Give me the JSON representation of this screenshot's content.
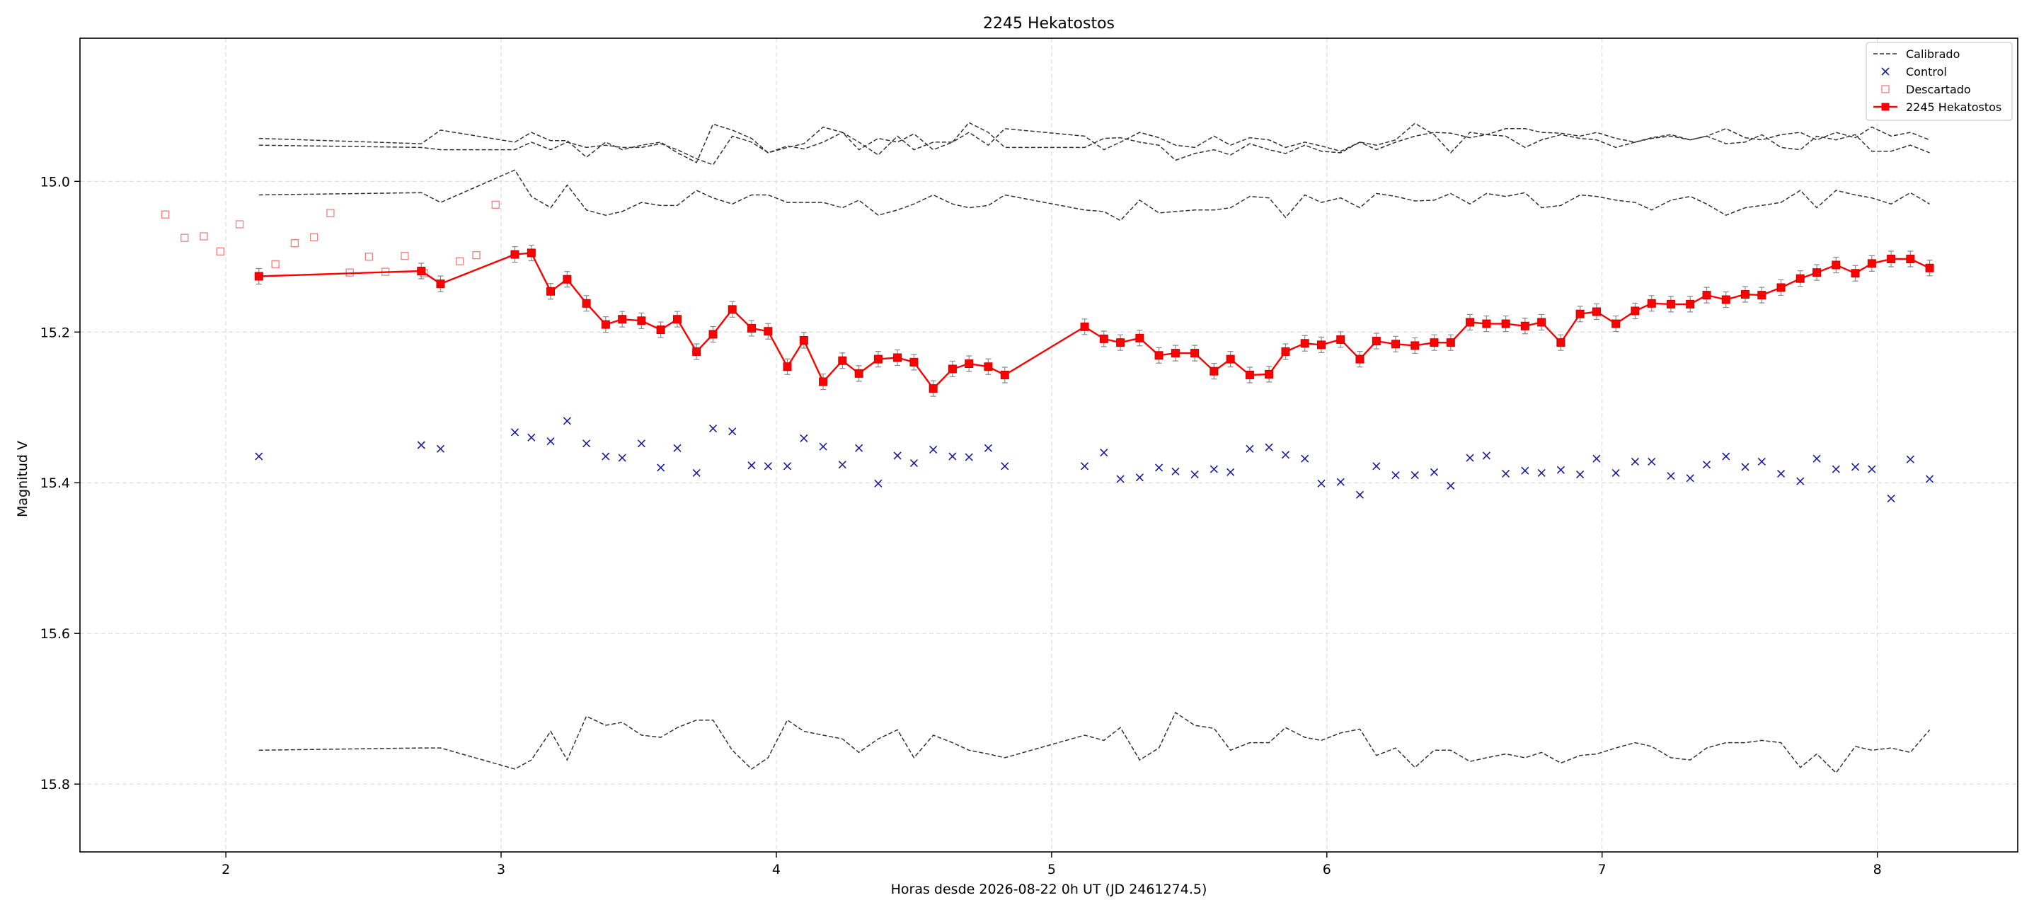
{
  "chart_data": {
    "type": "line",
    "title": "2245 Hekatostos",
    "xlabel": "Horas desde 2026-08-22 0h UT (JD 2461274.5)",
    "ylabel": "Magnitud V",
    "xlim": [
      1.47,
      8.51
    ],
    "ylim": [
      15.89,
      14.81
    ],
    "y_inverted": true,
    "grid": true,
    "legend_position": "top-right",
    "x_ticks": [
      "2",
      "3",
      "4",
      "5",
      "6",
      "7",
      "8"
    ],
    "x_tick_values": [
      2,
      3,
      4,
      5,
      6,
      7,
      8
    ],
    "y_ticks": [
      "15.0",
      "15.2",
      "15.4",
      "15.6",
      "15.8"
    ],
    "y_tick_values": [
      15.0,
      15.2,
      15.4,
      15.6,
      15.8
    ],
    "legend": [
      "Calibrado",
      "Control",
      "Descartado",
      "2245 Hekatostos"
    ],
    "colors": {
      "calibrated": "#333333",
      "control": "#1a1aa0",
      "discarded": "#f08080",
      "target": "#ff0000",
      "grid": "#dddddd"
    },
    "target": {
      "name": "2245 Hekatostos",
      "x": [
        2.12,
        2.71,
        2.78,
        3.05,
        3.11,
        3.18,
        3.24,
        3.31,
        3.38,
        3.44,
        3.51,
        3.58,
        3.64,
        3.71,
        3.77,
        3.84,
        3.91,
        3.97,
        4.04,
        4.1,
        4.17,
        4.24,
        4.3,
        4.37,
        4.44,
        4.5,
        4.57,
        4.64,
        4.7,
        4.77,
        4.83,
        5.12,
        5.19,
        5.25,
        5.32,
        5.39,
        5.45,
        5.52,
        5.59,
        5.65,
        5.72,
        5.79,
        5.85,
        5.92,
        5.98,
        6.05,
        6.12,
        6.18,
        6.25,
        6.32,
        6.39,
        6.45,
        6.52,
        6.58,
        6.65,
        6.72,
        6.78,
        6.85,
        6.92,
        6.98,
        7.05,
        7.12,
        7.18,
        7.25,
        7.32,
        7.38,
        7.45,
        7.52,
        7.58,
        7.65,
        7.72,
        7.78,
        7.85,
        7.92,
        7.98,
        8.05,
        8.12,
        8.19
      ],
      "y": [
        15.126,
        15.119,
        15.136,
        15.097,
        15.095,
        15.146,
        15.13,
        15.162,
        15.19,
        15.183,
        15.185,
        15.197,
        15.183,
        15.226,
        15.203,
        15.17,
        15.195,
        15.199,
        15.246,
        15.211,
        15.266,
        15.238,
        15.255,
        15.236,
        15.234,
        15.24,
        15.275,
        15.249,
        15.242,
        15.246,
        15.257,
        15.193,
        15.209,
        15.214,
        15.208,
        15.231,
        15.228,
        15.228,
        15.252,
        15.236,
        15.257,
        15.256,
        15.226,
        15.215,
        15.217,
        15.21,
        15.236,
        15.212,
        15.216,
        15.218,
        15.214,
        15.214,
        15.187,
        15.189,
        15.189,
        15.192,
        15.187,
        15.214,
        15.176,
        15.173,
        15.189,
        15.172,
        15.162,
        15.163,
        15.163,
        15.151,
        15.157,
        15.15,
        15.151,
        15.141,
        15.129,
        15.121,
        15.111,
        15.122,
        15.109,
        15.103,
        15.103,
        15.115
      ]
    },
    "control": {
      "name": "Control",
      "x": [
        2.12,
        2.71,
        2.78,
        3.05,
        3.11,
        3.18,
        3.24,
        3.31,
        3.38,
        3.44,
        3.51,
        3.58,
        3.64,
        3.71,
        3.77,
        3.84,
        3.91,
        3.97,
        4.04,
        4.1,
        4.17,
        4.24,
        4.3,
        4.37,
        4.44,
        4.5,
        4.57,
        4.64,
        4.7,
        4.77,
        4.83,
        5.12,
        5.19,
        5.25,
        5.32,
        5.39,
        5.45,
        5.52,
        5.59,
        5.65,
        5.72,
        5.79,
        5.85,
        5.92,
        5.98,
        6.05,
        6.12,
        6.18,
        6.25,
        6.32,
        6.39,
        6.45,
        6.52,
        6.58,
        6.65,
        6.72,
        6.78,
        6.85,
        6.92,
        6.98,
        7.05,
        7.12,
        7.18,
        7.25,
        7.32,
        7.38,
        7.45,
        7.52,
        7.58,
        7.65,
        7.72,
        7.78,
        7.85,
        7.92,
        7.98,
        8.05,
        8.12,
        8.19
      ],
      "y": [
        15.365,
        15.35,
        15.355,
        15.333,
        15.34,
        15.345,
        15.318,
        15.348,
        15.365,
        15.367,
        15.348,
        15.38,
        15.354,
        15.387,
        15.328,
        15.332,
        15.377,
        15.378,
        15.378,
        15.341,
        15.352,
        15.376,
        15.354,
        15.401,
        15.364,
        15.374,
        15.356,
        15.365,
        15.366,
        15.354,
        15.378,
        15.378,
        15.36,
        15.395,
        15.393,
        15.38,
        15.385,
        15.389,
        15.382,
        15.386,
        15.355,
        15.353,
        15.363,
        15.368,
        15.401,
        15.399,
        15.416,
        15.378,
        15.39,
        15.39,
        15.386,
        15.404,
        15.367,
        15.364,
        15.388,
        15.384,
        15.387,
        15.383,
        15.389,
        15.368,
        15.387,
        15.372,
        15.372,
        15.391,
        15.394,
        15.376,
        15.365,
        15.379,
        15.372,
        15.388,
        15.398,
        15.368,
        15.382,
        15.379,
        15.382,
        15.421,
        15.369,
        15.395
      ]
    },
    "discarded": {
      "name": "Descartado",
      "x": [
        1.78,
        1.85,
        1.92,
        1.98,
        2.05,
        2.18,
        2.25,
        2.32,
        2.38,
        2.45,
        2.52,
        2.58,
        2.65,
        2.72,
        2.85,
        2.91,
        2.98
      ],
      "y": [
        15.044,
        15.075,
        15.073,
        15.093,
        15.057,
        15.11,
        15.082,
        15.074,
        15.042,
        15.121,
        15.1,
        15.12,
        15.099,
        15.122,
        15.106,
        15.098,
        15.031
      ]
    },
    "calibrated": [
      {
        "x": [
          2.12,
          2.71,
          2.78,
          3.05,
          3.11,
          3.18,
          3.24,
          3.31,
          3.38,
          3.44,
          3.51,
          3.58,
          3.64,
          3.71,
          3.77,
          3.84,
          3.91,
          3.97,
          4.04,
          4.1,
          4.17,
          4.24,
          4.3,
          4.37,
          4.44,
          4.5,
          4.57,
          4.64,
          4.7,
          4.77,
          4.83,
          5.12,
          5.19,
          5.25,
          5.32,
          5.39,
          5.45,
          5.52,
          5.59,
          5.65,
          5.72,
          5.79,
          5.85,
          5.92,
          5.98,
          6.05,
          6.12,
          6.18,
          6.25,
          6.32,
          6.39,
          6.45,
          6.52,
          6.58,
          6.65,
          6.72,
          6.78,
          6.85,
          6.92,
          6.98,
          7.05,
          7.12,
          7.18,
          7.25,
          7.32,
          7.38,
          7.45,
          7.52,
          7.58,
          7.65,
          7.72,
          7.78,
          7.85,
          7.92,
          7.98,
          8.05,
          8.12,
          8.19
        ],
        "y": [
          14.943,
          14.95,
          14.932,
          14.948,
          14.935,
          14.946,
          14.946,
          14.968,
          14.948,
          14.958,
          14.952,
          14.948,
          14.962,
          14.975,
          14.924,
          14.932,
          14.943,
          14.962,
          14.953,
          14.957,
          14.948,
          14.935,
          14.948,
          14.965,
          14.94,
          14.958,
          14.948,
          14.948,
          14.935,
          14.952,
          14.93,
          14.94,
          14.958,
          14.948,
          14.935,
          14.942,
          14.952,
          14.955,
          14.94,
          14.952,
          14.942,
          14.945,
          14.955,
          14.948,
          14.953,
          14.96,
          14.948,
          14.958,
          14.948,
          14.94,
          14.935,
          14.936,
          14.942,
          14.938,
          14.93,
          14.93,
          14.935,
          14.936,
          14.94,
          14.935,
          14.943,
          14.948,
          14.942,
          14.938,
          14.945,
          14.94,
          14.93,
          14.942,
          14.945,
          14.938,
          14.935,
          14.945,
          14.935,
          14.942,
          14.928,
          14.94,
          14.935,
          14.945
        ]
      },
      {
        "x": [
          2.12,
          2.71,
          2.78,
          3.05,
          3.11,
          3.18,
          3.24,
          3.31,
          3.38,
          3.44,
          3.51,
          3.58,
          3.64,
          3.71,
          3.77,
          3.84,
          3.91,
          3.97,
          4.04,
          4.1,
          4.17,
          4.24,
          4.3,
          4.37,
          4.44,
          4.5,
          4.57,
          4.64,
          4.7,
          4.77,
          4.83,
          5.12,
          5.19,
          5.25,
          5.32,
          5.39,
          5.45,
          5.52,
          5.59,
          5.65,
          5.72,
          5.79,
          5.85,
          5.92,
          5.98,
          6.05,
          6.12,
          6.18,
          6.25,
          6.32,
          6.39,
          6.45,
          6.52,
          6.58,
          6.65,
          6.72,
          6.78,
          6.85,
          6.92,
          6.98,
          7.05,
          7.12,
          7.18,
          7.25,
          7.32,
          7.38,
          7.45,
          7.52,
          7.58,
          7.65,
          7.72,
          7.78,
          7.85,
          7.92,
          7.98,
          8.05,
          8.12,
          8.19
        ],
        "y": [
          14.952,
          14.955,
          14.958,
          14.958,
          14.948,
          14.958,
          14.948,
          14.955,
          14.952,
          14.955,
          14.955,
          14.95,
          14.958,
          14.97,
          14.978,
          14.94,
          14.948,
          14.962,
          14.955,
          14.95,
          14.928,
          14.935,
          14.958,
          14.943,
          14.948,
          14.937,
          14.958,
          14.948,
          14.922,
          14.935,
          14.955,
          14.955,
          14.943,
          14.942,
          14.948,
          14.952,
          14.972,
          14.963,
          14.958,
          14.965,
          14.95,
          14.958,
          14.963,
          14.952,
          14.96,
          14.962,
          14.948,
          14.952,
          14.945,
          14.923,
          14.938,
          14.962,
          14.935,
          14.938,
          14.94,
          14.955,
          14.945,
          14.938,
          14.943,
          14.945,
          14.955,
          14.948,
          14.943,
          14.94,
          14.945,
          14.94,
          14.95,
          14.948,
          14.938,
          14.955,
          14.958,
          14.94,
          14.945,
          14.938,
          14.96,
          14.96,
          14.952,
          14.962
        ]
      },
      {
        "x": [
          2.12,
          2.71,
          2.78,
          3.05,
          3.11,
          3.18,
          3.24,
          3.31,
          3.38,
          3.44,
          3.51,
          3.58,
          3.64,
          3.71,
          3.77,
          3.84,
          3.91,
          3.97,
          4.04,
          4.1,
          4.17,
          4.24,
          4.3,
          4.37,
          4.44,
          4.5,
          4.57,
          4.64,
          4.7,
          4.77,
          4.83,
          5.12,
          5.19,
          5.25,
          5.32,
          5.39,
          5.45,
          5.52,
          5.59,
          5.65,
          5.72,
          5.79,
          5.85,
          5.92,
          5.98,
          6.05,
          6.12,
          6.18,
          6.25,
          6.32,
          6.39,
          6.45,
          6.52,
          6.58,
          6.65,
          6.72,
          6.78,
          6.85,
          6.92,
          6.98,
          7.05,
          7.12,
          7.18,
          7.25,
          7.32,
          7.38,
          7.45,
          7.52,
          7.58,
          7.65,
          7.72,
          7.78,
          7.85,
          7.92,
          7.98,
          8.05,
          8.12,
          8.19
        ],
        "y": [
          15.018,
          15.015,
          15.028,
          14.985,
          15.02,
          15.035,
          15.005,
          15.038,
          15.045,
          15.04,
          15.028,
          15.032,
          15.032,
          15.012,
          15.022,
          15.03,
          15.018,
          15.018,
          15.028,
          15.028,
          15.028,
          15.035,
          15.025,
          15.045,
          15.038,
          15.03,
          15.018,
          15.03,
          15.035,
          15.032,
          15.018,
          15.038,
          15.04,
          15.052,
          15.025,
          15.042,
          15.04,
          15.038,
          15.038,
          15.035,
          15.02,
          15.022,
          15.048,
          15.018,
          15.028,
          15.022,
          15.035,
          15.016,
          15.02,
          15.026,
          15.025,
          15.016,
          15.03,
          15.016,
          15.02,
          15.015,
          15.035,
          15.032,
          15.018,
          15.02,
          15.025,
          15.028,
          15.038,
          15.025,
          15.02,
          15.03,
          15.045,
          15.035,
          15.032,
          15.028,
          15.012,
          15.035,
          15.012,
          15.018,
          15.022,
          15.03,
          15.015,
          15.03
        ]
      },
      {
        "x": [
          2.12,
          2.71,
          2.78,
          3.05,
          3.11,
          3.18,
          3.24,
          3.31,
          3.38,
          3.44,
          3.51,
          3.58,
          3.64,
          3.71,
          3.77,
          3.84,
          3.91,
          3.97,
          4.04,
          4.1,
          4.17,
          4.24,
          4.3,
          4.37,
          4.44,
          4.5,
          4.57,
          4.64,
          4.7,
          4.77,
          4.83,
          5.12,
          5.19,
          5.25,
          5.32,
          5.39,
          5.45,
          5.52,
          5.59,
          5.65,
          5.72,
          5.79,
          5.85,
          5.92,
          5.98,
          6.05,
          6.12,
          6.18,
          6.25,
          6.32,
          6.39,
          6.45,
          6.52,
          6.58,
          6.65,
          6.72,
          6.78,
          6.85,
          6.92,
          6.98,
          7.05,
          7.12,
          7.18,
          7.25,
          7.32,
          7.38,
          7.45,
          7.52,
          7.58,
          7.65,
          7.72,
          7.78,
          7.85,
          7.92,
          7.98,
          8.05,
          8.12,
          8.19
        ],
        "y": [
          15.755,
          15.752,
          15.752,
          15.78,
          15.768,
          15.73,
          15.768,
          15.71,
          15.722,
          15.718,
          15.735,
          15.738,
          15.725,
          15.715,
          15.715,
          15.755,
          15.78,
          15.765,
          15.715,
          15.73,
          15.735,
          15.74,
          15.758,
          15.74,
          15.728,
          15.765,
          15.735,
          15.745,
          15.755,
          15.76,
          15.765,
          15.735,
          15.742,
          15.725,
          15.768,
          15.752,
          15.705,
          15.722,
          15.726,
          15.755,
          15.745,
          15.745,
          15.725,
          15.738,
          15.742,
          15.732,
          15.727,
          15.762,
          15.752,
          15.778,
          15.755,
          15.755,
          15.77,
          15.765,
          15.76,
          15.765,
          15.758,
          15.772,
          15.762,
          15.76,
          15.752,
          15.745,
          15.75,
          15.765,
          15.768,
          15.752,
          15.745,
          15.745,
          15.742,
          15.745,
          15.778,
          15.76,
          15.785,
          15.75,
          15.755,
          15.752,
          15.758,
          15.728
        ]
      }
    ]
  }
}
